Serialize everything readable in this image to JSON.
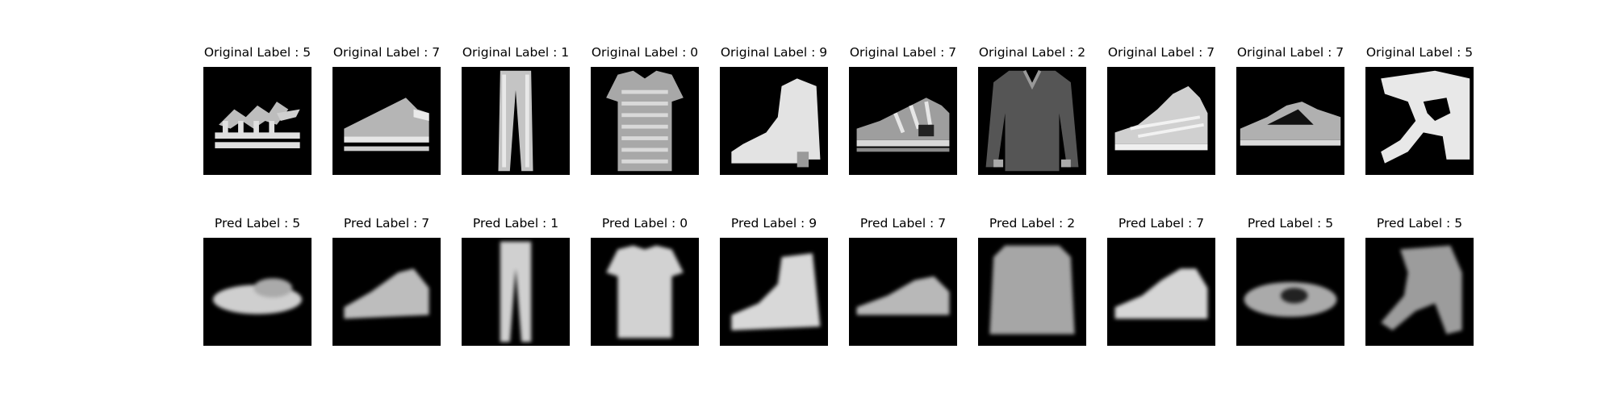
{
  "rows": [
    {
      "kind": "original",
      "items": [
        {
          "label": "Original Label : 5",
          "icon": "sandal-icon"
        },
        {
          "label": "Original Label : 7",
          "icon": "sneaker-icon"
        },
        {
          "label": "Original Label : 1",
          "icon": "trouser-icon"
        },
        {
          "label": "Original Label : 0",
          "icon": "tshirt-icon"
        },
        {
          "label": "Original Label : 9",
          "icon": "ankle-boot-icon"
        },
        {
          "label": "Original Label : 7",
          "icon": "sneaker-icon"
        },
        {
          "label": "Original Label : 2",
          "icon": "pullover-icon"
        },
        {
          "label": "Original Label : 7",
          "icon": "sneaker-icon"
        },
        {
          "label": "Original Label : 7",
          "icon": "sneaker-icon"
        },
        {
          "label": "Original Label : 5",
          "icon": "sandal-icon"
        }
      ]
    },
    {
      "kind": "reconstruction",
      "items": [
        {
          "label": "Pred Label : 5",
          "icon": "sandal-icon"
        },
        {
          "label": "Pred Label : 7",
          "icon": "sneaker-icon"
        },
        {
          "label": "Pred Label : 1",
          "icon": "trouser-icon"
        },
        {
          "label": "Pred Label : 0",
          "icon": "tshirt-icon"
        },
        {
          "label": "Pred Label : 9",
          "icon": "ankle-boot-icon"
        },
        {
          "label": "Pred Label : 7",
          "icon": "sneaker-icon"
        },
        {
          "label": "Pred Label : 2",
          "icon": "pullover-icon"
        },
        {
          "label": "Pred Label : 7",
          "icon": "sneaker-icon"
        },
        {
          "label": "Pred Label : 5",
          "icon": "sneaker-icon"
        },
        {
          "label": "Pred Label : 5",
          "icon": "sandal-icon"
        }
      ]
    }
  ]
}
